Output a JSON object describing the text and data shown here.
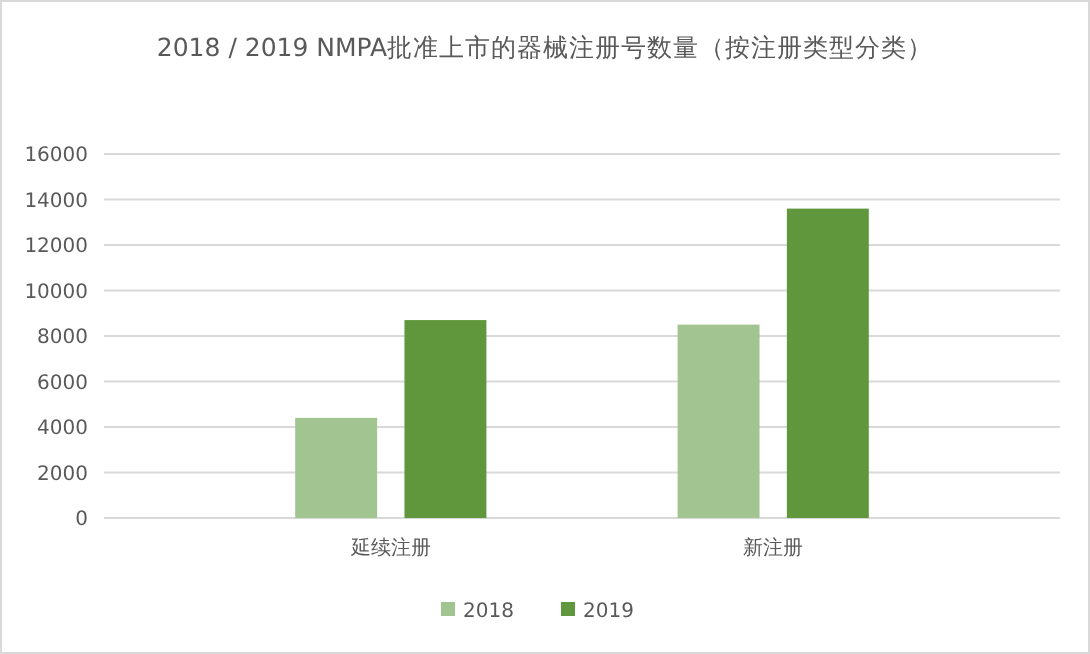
{
  "chart_data": {
    "type": "bar",
    "title": "2018 / 2019 NMPA批准上市的器械注册号数量（按注册类型分类）",
    "categories": [
      "延续注册",
      "新注册"
    ],
    "series": [
      {
        "name": "2018",
        "color": "#a2c490",
        "values": [
          4400,
          8500
        ]
      },
      {
        "name": "2019",
        "color": "#61973c",
        "values": [
          8700,
          13600
        ]
      }
    ],
    "ylim": [
      0,
      16000
    ],
    "yticks": [
      0,
      2000,
      4000,
      6000,
      8000,
      10000,
      12000,
      14000,
      16000
    ],
    "grid": "y",
    "legend": "bottom"
  }
}
